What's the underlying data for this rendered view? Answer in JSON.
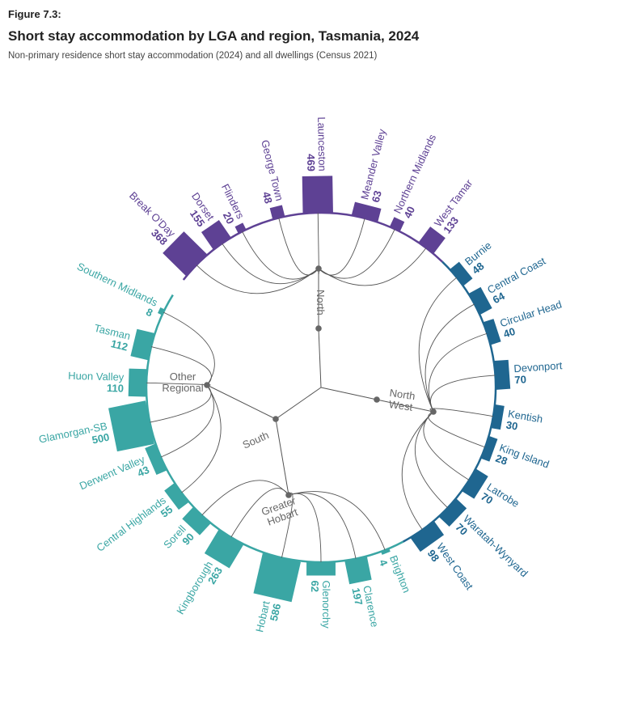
{
  "figure": {
    "label": "Figure 7.3:",
    "title": "Short stay accommodation by LGA and region, Tasmania, 2024",
    "subtitle": "Non-primary residence short stay accommodation (2024) and all dwellings (Census 2021)"
  },
  "chart_data": {
    "type": "radial-hierarchy-bar",
    "title": "Short stay accommodation by LGA and region, Tasmania, 2024",
    "hierarchy": [
      {
        "name": "North",
        "children": [
          "Break O'Day",
          "Dorset",
          "Flinders",
          "George Town",
          "Launceston",
          "Meander Valley",
          "Northern Midlands",
          "West Tamar"
        ]
      },
      {
        "name": "North West",
        "children": [
          "Burnie",
          "Central Coast",
          "Circular Head",
          "Devonport",
          "Kentish",
          "King Island",
          "Latrobe",
          "Waratah-Wynyard",
          "West Coast"
        ]
      },
      {
        "name": "South",
        "children": [
          "Greater Hobart",
          "Other Regional"
        ]
      },
      {
        "name": "Greater Hobart",
        "children": [
          "Brighton",
          "Clarence",
          "Glenorchy",
          "Hobart",
          "Kingborough",
          "Sorell"
        ]
      },
      {
        "name": "Other Regional",
        "children": [
          "Central Highlands",
          "Derwent Valley",
          "Glamorgan-SB",
          "Huon Valley",
          "Tasman",
          "Southern Midlands"
        ]
      }
    ],
    "node_labels": [
      {
        "id": "north",
        "text": "North"
      },
      {
        "id": "northwest",
        "lines": [
          "North",
          "West"
        ]
      },
      {
        "id": "south",
        "text": "South"
      },
      {
        "id": "greaterhobart",
        "lines": [
          "Greater",
          "Hobart"
        ]
      },
      {
        "id": "otherregional",
        "lines": [
          "Other",
          "Regional"
        ]
      }
    ],
    "series": [
      {
        "name": "Break O'Day",
        "value": 368,
        "region": "North"
      },
      {
        "name": "Dorset",
        "value": 155,
        "region": "North"
      },
      {
        "name": "Flinders",
        "value": 20,
        "region": "North"
      },
      {
        "name": "George Town",
        "value": 48,
        "region": "North"
      },
      {
        "name": "Launceston",
        "value": 469,
        "region": "North"
      },
      {
        "name": "Meander Valley",
        "value": 63,
        "region": "North"
      },
      {
        "name": "Northern Midlands",
        "value": 40,
        "region": "North"
      },
      {
        "name": "West Tamar",
        "value": 133,
        "region": "North"
      },
      {
        "name": "Burnie",
        "value": 48,
        "region": "North West"
      },
      {
        "name": "Central Coast",
        "value": 64,
        "region": "North West"
      },
      {
        "name": "Circular Head",
        "value": 40,
        "region": "North West"
      },
      {
        "name": "Devonport",
        "value": 70,
        "region": "North West"
      },
      {
        "name": "Kentish",
        "value": 30,
        "region": "North West"
      },
      {
        "name": "King Island",
        "value": 28,
        "region": "North West"
      },
      {
        "name": "Latrobe",
        "value": 70,
        "region": "North West"
      },
      {
        "name": "Waratah-Wynyard",
        "value": 70,
        "region": "North West"
      },
      {
        "name": "West Coast",
        "value": 98,
        "region": "North West"
      },
      {
        "name": "Brighton",
        "value": 4,
        "region": "Greater Hobart"
      },
      {
        "name": "Clarence",
        "value": 197,
        "region": "Greater Hobart"
      },
      {
        "name": "Glenorchy",
        "value": 62,
        "region": "Greater Hobart"
      },
      {
        "name": "Hobart",
        "value": 586,
        "region": "Greater Hobart"
      },
      {
        "name": "Kingborough",
        "value": 263,
        "region": "Greater Hobart"
      },
      {
        "name": "Sorell",
        "value": 90,
        "region": "Greater Hobart"
      },
      {
        "name": "Central Highlands",
        "value": 55,
        "region": "Other Regional"
      },
      {
        "name": "Derwent Valley",
        "value": 43,
        "region": "Other Regional"
      },
      {
        "name": "Glamorgan-SB",
        "value": 500,
        "region": "Other Regional"
      },
      {
        "name": "Huon Valley",
        "value": 110,
        "region": "Other Regional"
      },
      {
        "name": "Tasman",
        "value": 112,
        "region": "Other Regional"
      },
      {
        "name": "Southern Midlands",
        "value": 8,
        "region": "Other Regional"
      }
    ],
    "colors": {
      "North": "#5e4194",
      "North West": "#1f6690",
      "South": "#3aa6a4",
      "links": "#555555",
      "nodes": "#666666"
    }
  }
}
